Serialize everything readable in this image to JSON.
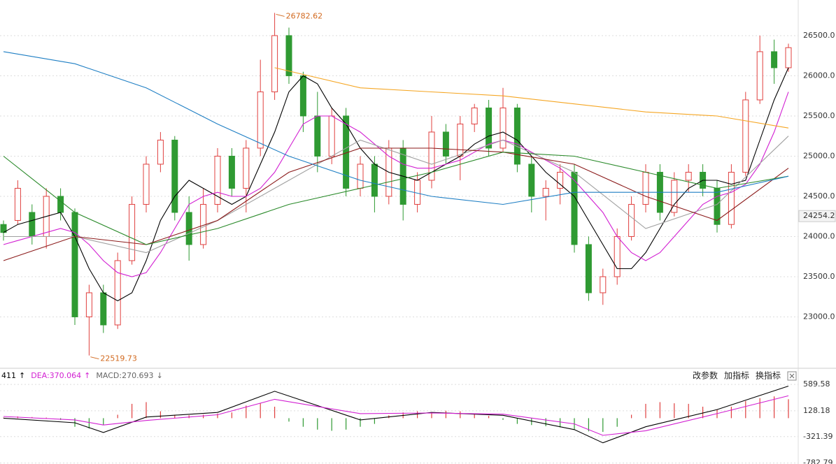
{
  "chart_data": [
    {
      "type": "candlestick",
      "ylim": [
        22378,
        26943
      ],
      "yticks": [
        {
          "value": 23000,
          "label": "23000.0"
        },
        {
          "value": 23500,
          "label": "23500.0"
        },
        {
          "value": 24000,
          "label": "24000.0"
        },
        {
          "value": 24500,
          "label": "24500.0"
        },
        {
          "value": 25000,
          "label": "25000.0"
        },
        {
          "value": 25500,
          "label": "25500.0"
        },
        {
          "value": 26000,
          "label": "26000.0"
        },
        {
          "value": 26500,
          "label": "26500.0"
        }
      ],
      "grid": true,
      "up_color": "#e0403f",
      "down_color": "#2f9a32",
      "candles": {
        "open": [
          24150,
          24200,
          24300,
          24000,
          24500,
          24300,
          23000,
          23300,
          22900,
          23700,
          24400,
          24900,
          25200,
          24300,
          23900,
          24400,
          25000,
          24600,
          25100,
          25800,
          26500,
          26000,
          25500,
          25000,
          25500,
          24600,
          24900,
          24500,
          25100,
          24400,
          24700,
          25300,
          25000,
          25400,
          25600,
          25100,
          25600,
          24900,
          24500,
          24600,
          24800,
          23900,
          23300,
          23500,
          24000,
          24400,
          24800,
          24300,
          24700,
          24800,
          24600,
          24150,
          24800,
          25700,
          26300,
          26100
        ],
        "high": [
          24200,
          24700,
          24400,
          24600,
          24600,
          24350,
          23400,
          23400,
          23800,
          24500,
          25000,
          25300,
          25250,
          24500,
          24600,
          25100,
          25100,
          25200,
          26200,
          26782.62,
          26600,
          26050,
          25800,
          25600,
          25600,
          25000,
          25000,
          25200,
          25200,
          24800,
          25500,
          25400,
          25500,
          25650,
          25700,
          25850,
          25650,
          25000,
          24700,
          24900,
          24900,
          24000,
          23600,
          24100,
          24500,
          24900,
          24900,
          24800,
          24900,
          24900,
          24700,
          24900,
          25800,
          26500,
          26450,
          26400
        ],
        "low": [
          23950,
          24150,
          23900,
          23850,
          24200,
          22900,
          22519.73,
          22800,
          22850,
          23650,
          24300,
          24800,
          24200,
          23700,
          23850,
          24300,
          24500,
          24300,
          25000,
          25700,
          25900,
          25300,
          24800,
          24900,
          24500,
          24500,
          24300,
          24400,
          24200,
          24300,
          24600,
          24900,
          24700,
          25300,
          25000,
          25050,
          24800,
          24300,
          24200,
          24400,
          23800,
          23200,
          23150,
          23400,
          23950,
          24300,
          24200,
          24250,
          24550,
          24500,
          24050,
          24100,
          24750,
          25650,
          25900,
          26050
        ],
        "close": [
          24050,
          24600,
          24000,
          24500,
          24300,
          23000,
          23300,
          22900,
          23700,
          24400,
          24900,
          25200,
          24300,
          23900,
          24400,
          25000,
          24600,
          25100,
          25800,
          26500,
          26000,
          25500,
          25000,
          25500,
          24600,
          24900,
          24500,
          25100,
          24400,
          24700,
          25300,
          25000,
          25400,
          25600,
          25100,
          25600,
          24900,
          24500,
          24600,
          24800,
          23900,
          23300,
          23500,
          24000,
          24400,
          24800,
          24300,
          24700,
          24800,
          24600,
          24150,
          24800,
          25700,
          26300,
          26100,
          26350
        ]
      },
      "lines": [
        {
          "color": "#000000",
          "values": [
            24050,
            24150,
            24200,
            24250,
            24300,
            24000,
            23600,
            23300,
            23200,
            23300,
            23700,
            24200,
            24500,
            24700,
            24600,
            24500,
            24400,
            24500,
            24900,
            25300,
            25800,
            26000,
            25900,
            25600,
            25400,
            25100,
            24900,
            24800,
            24750,
            24700,
            24800,
            24900,
            25000,
            25150,
            25250,
            25300,
            25200,
            25000,
            24800,
            24650,
            24500,
            24200,
            23900,
            23600,
            23600,
            23800,
            24100,
            24400,
            24600,
            24700,
            24700,
            24650,
            24700,
            25200,
            25700,
            26100
          ]
        },
        {
          "color": "#d21fd2",
          "values": [
            23900,
            23950,
            24000,
            24050,
            24100,
            24050,
            23900,
            23700,
            23550,
            23500,
            23550,
            23800,
            24100,
            24400,
            24500,
            24550,
            24500,
            24500,
            24600,
            24800,
            25100,
            25400,
            25500,
            25500,
            25400,
            25300,
            25150,
            25000,
            24900,
            24850,
            24850,
            24900,
            24950,
            25050,
            25150,
            25200,
            25150,
            25050,
            24950,
            24850,
            24700,
            24500,
            24300,
            24000,
            23800,
            23700,
            23800,
            24000,
            24200,
            24400,
            24500,
            24550,
            24650,
            24900,
            25300,
            25800
          ]
        },
        {
          "color": "#a0a0a0",
          "x": [
            0,
            5,
            10,
            15,
            20,
            25,
            30,
            35,
            40,
            45,
            50,
            55
          ],
          "values": [
            24000,
            24000,
            23800,
            24200,
            24700,
            25200,
            24900,
            25200,
            24800,
            24100,
            24400,
            25250
          ]
        },
        {
          "color": "#8b1a1a",
          "x": [
            0,
            5,
            10,
            15,
            20,
            25,
            30,
            35,
            40,
            45,
            50,
            55
          ],
          "values": [
            23700,
            24000,
            23900,
            24200,
            24800,
            25100,
            25100,
            25050,
            24900,
            24500,
            24200,
            24850
          ]
        },
        {
          "color": "#2a8a2a",
          "x": [
            0,
            5,
            10,
            15,
            20,
            25,
            30,
            35,
            40,
            45,
            50,
            55
          ],
          "values": [
            25000,
            24300,
            23900,
            24100,
            24400,
            24600,
            24800,
            25050,
            25000,
            24800,
            24600,
            24750
          ]
        },
        {
          "color": "#1f7fc4",
          "x": [
            0,
            5,
            10,
            15,
            20,
            25,
            30,
            35,
            40,
            45,
            50,
            55
          ],
          "values": [
            26300,
            26150,
            25850,
            25400,
            25000,
            24700,
            24500,
            24400,
            24550,
            24550,
            24550,
            24750
          ]
        },
        {
          "color": "#f5a623",
          "x": [
            19,
            25,
            30,
            35,
            40,
            45,
            50,
            55
          ],
          "values": [
            26100,
            25850,
            25800,
            25750,
            25650,
            25550,
            25500,
            25350
          ]
        }
      ],
      "annotations": [
        {
          "label": "26782.62",
          "value": 26782.62,
          "kind": "high"
        },
        {
          "label": "22519.73",
          "value": 22519.73,
          "kind": "low"
        }
      ],
      "last_price": {
        "label": "24254.2",
        "value": 24254.2
      }
    },
    {
      "type": "macd",
      "ylim": [
        -800,
        810
      ],
      "yticks": [
        589.58,
        128.18,
        -321.39,
        -782.79
      ],
      "legend": [
        {
          "label": "411",
          "arrow": "↑",
          "color": "#000000"
        },
        {
          "label": "DEA:370.064",
          "arrow": "↑",
          "color": "#d21fd2"
        },
        {
          "label": "MACD:270.693",
          "arrow": "↓",
          "color": "#666666"
        }
      ],
      "buttons": [
        "改参数",
        "加指标",
        "换指标"
      ],
      "histogram": [
        10,
        30,
        20,
        10,
        -30,
        -150,
        -180,
        -120,
        60,
        250,
        280,
        120,
        60,
        50,
        60,
        80,
        100,
        220,
        260,
        200,
        -60,
        -150,
        -200,
        -220,
        -200,
        -150,
        -100,
        50,
        100,
        120,
        100,
        130,
        120,
        80,
        40,
        -30,
        -100,
        -120,
        -140,
        -160,
        -200,
        -230,
        -240,
        -150,
        60,
        250,
        280,
        260,
        250,
        200,
        150,
        200,
        300,
        350,
        380,
        330
      ],
      "lines": [
        {
          "color": "#000000",
          "x": [
            0,
            5,
            7,
            10,
            15,
            19,
            25,
            30,
            35,
            40,
            42,
            45,
            50,
            55
          ],
          "values": [
            0,
            -80,
            -250,
            20,
            100,
            470,
            -30,
            100,
            50,
            -200,
            -430,
            -150,
            150,
            560
          ]
        },
        {
          "color": "#d21fd2",
          "x": [
            0,
            5,
            7,
            10,
            15,
            19,
            25,
            30,
            35,
            40,
            42,
            45,
            50,
            55
          ],
          "values": [
            30,
            -30,
            -120,
            -40,
            60,
            330,
            80,
            90,
            70,
            -100,
            -300,
            -220,
            80,
            390
          ]
        }
      ]
    }
  ]
}
